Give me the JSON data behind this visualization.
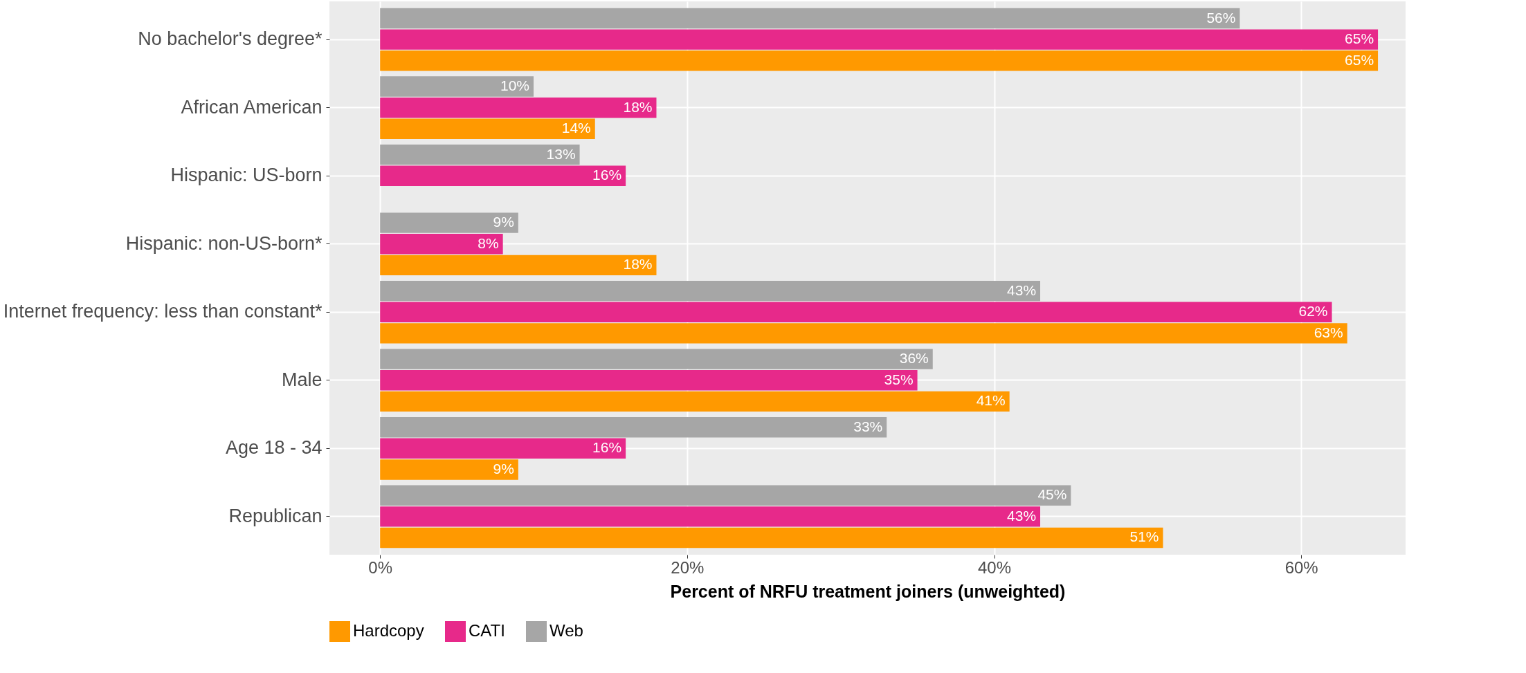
{
  "chart_data": {
    "type": "bar",
    "orientation": "horizontal",
    "categories": [
      "No bachelor's degree*",
      "African American",
      "Hispanic: US-born",
      "Hispanic: non-US-born*",
      "Internet frequency: less than constant*",
      "Male",
      "Age 18 - 34",
      "Republican"
    ],
    "series": [
      {
        "name": "Hardcopy",
        "color": "#ff9900",
        "values": [
          65,
          14,
          null,
          18,
          63,
          41,
          9,
          51
        ],
        "value_labels": [
          "65%",
          "14%",
          null,
          "18%",
          "63%",
          "41%",
          "9%",
          "51%"
        ]
      },
      {
        "name": "CATI",
        "color": "#e7298a",
        "values": [
          65,
          18,
          16,
          8,
          62,
          35,
          16,
          43
        ],
        "value_labels": [
          "65%",
          "18%",
          "16%",
          "8%",
          "62%",
          "35%",
          "16%",
          "43%"
        ]
      },
      {
        "name": "Web",
        "color": "#a6a6a6",
        "values": [
          56,
          10,
          13,
          9,
          43,
          36,
          33,
          45
        ],
        "value_labels": [
          "56%",
          "10%",
          "13%",
          "9%",
          "43%",
          "36%",
          "33%",
          "45%"
        ]
      }
    ],
    "xlabel": "Percent of NRFU treatment joiners (unweighted)",
    "xlim": [
      -3.3,
      66.8
    ],
    "xticks": [
      {
        "value": 0,
        "label": "0%"
      },
      {
        "value": 20,
        "label": "20%"
      },
      {
        "value": 40,
        "label": "40%"
      },
      {
        "value": 60,
        "label": "60%"
      }
    ],
    "grid": true,
    "legend": "bottom"
  }
}
